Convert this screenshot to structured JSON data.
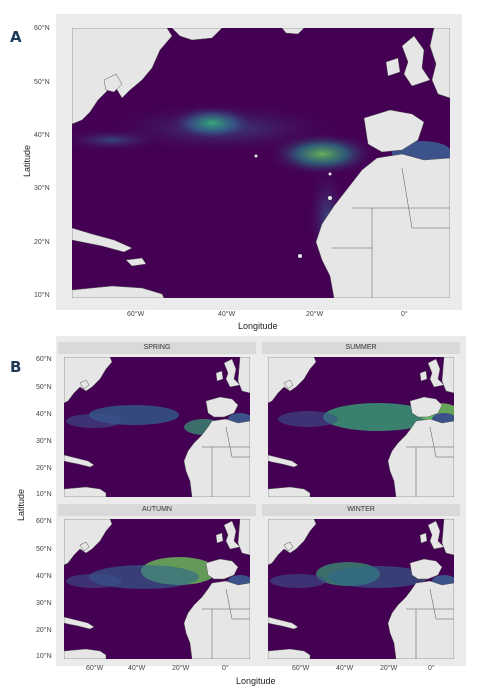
{
  "panel_a": {
    "label": "A",
    "y_axis_title": "Latitude",
    "x_axis_title": "Longitude",
    "lat_ticks": [
      "60°N",
      "50°N",
      "40°N",
      "30°N",
      "20°N",
      "10°N"
    ],
    "lon_ticks": [
      "60°W",
      "40°W",
      "20°W",
      "0°"
    ]
  },
  "panel_b": {
    "label": "B",
    "y_axis_title": "Latitude",
    "x_axis_title": "Longitude",
    "facets": [
      {
        "name": "SPRING"
      },
      {
        "name": "SUMMER"
      },
      {
        "name": "AUTUMN"
      },
      {
        "name": "WINTER"
      }
    ],
    "lat_ticks": [
      "60°N",
      "50°N",
      "40°N",
      "30°N",
      "20°N",
      "10°N"
    ],
    "lon_ticks": [
      "60°W",
      "40°W",
      "20°W",
      "0°"
    ]
  },
  "colors": {
    "ocean_low": "#440154",
    "ocean_mid": "#31688e",
    "ocean_high": "#35b779",
    "ocean_peak": "#fde725",
    "land": "#e6e6e6",
    "border": "#555555",
    "panel_bg": "#ebebeb",
    "strip_bg": "#d9d9d9"
  }
}
